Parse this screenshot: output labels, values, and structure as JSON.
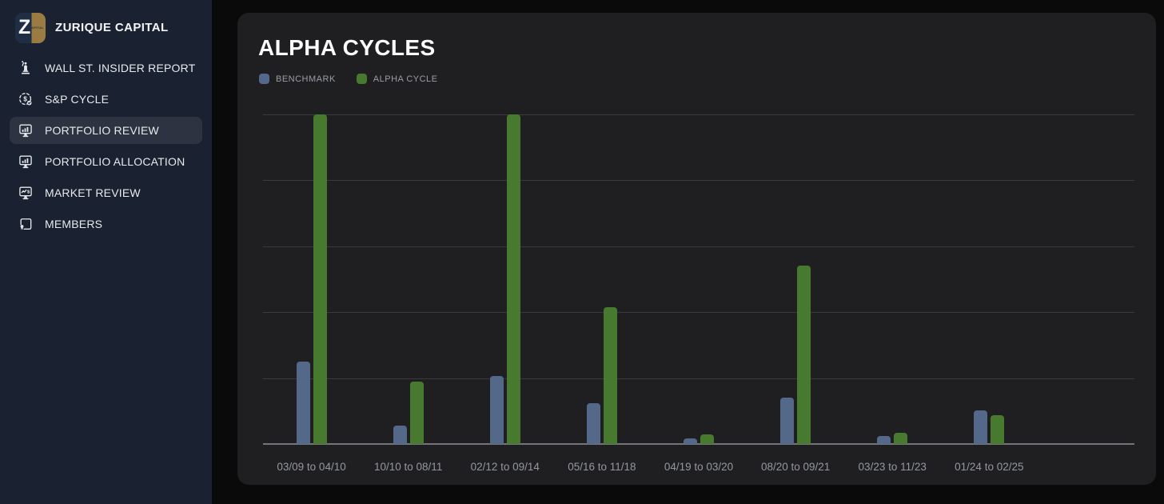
{
  "colors": {
    "page_bg": "#0a0a0b",
    "sidebar_bg": "#1a2130",
    "selected_item_bg": "#2d3340",
    "card_bg": "#1f1f21",
    "benchmark": "#54688a",
    "alpha_cycle": "#477a2f",
    "gridline": "#3a3a3e",
    "axis_line": "#737579",
    "logo_navy": "#202e45",
    "logo_gold": "#9a7c42"
  },
  "sidebar": {
    "brand": {
      "title": "ZURIQUE CAPITAL",
      "logo_letter": "Z",
      "logo_sub": "CAPITAL"
    },
    "items": [
      {
        "label": "WALL ST. INSIDER REPORT",
        "icon": "statue-icon",
        "selected": false
      },
      {
        "label": "S&P CYCLE",
        "icon": "dollar-cycle-icon",
        "selected": false
      },
      {
        "label": "PORTFOLIO REVIEW",
        "icon": "monitor-bars-icon",
        "selected": true
      },
      {
        "label": "PORTFOLIO ALLOCATION",
        "icon": "monitor-bars-icon",
        "selected": false
      },
      {
        "label": "MARKET REVIEW",
        "icon": "monitor-market-icon",
        "selected": false
      },
      {
        "label": "MEMBERS",
        "icon": "certificate-icon",
        "selected": false
      }
    ]
  },
  "main": {
    "title": "ALPHA CYCLES",
    "legend": [
      {
        "label": "BENCHMARK",
        "color": "#54688a"
      },
      {
        "label": "ALPHA CYCLE",
        "color": "#477a2f"
      }
    ]
  },
  "chart_data": {
    "type": "bar",
    "title": "ALPHA CYCLES",
    "categories": [
      "03/09 to 04/10",
      "10/10 to 08/11",
      "02/12 to 09/14",
      "05/16 to 11/18",
      "04/19 to 03/20",
      "08/20 to 09/21",
      "03/23 to 11/23",
      "01/24 to 02/25"
    ],
    "series": [
      {
        "name": "BENCHMARK",
        "color": "#54688a",
        "values": [
          125,
          28,
          103,
          62,
          9,
          70,
          12,
          51
        ]
      },
      {
        "name": "ALPHA CYCLE",
        "color": "#477a2f",
        "values": [
          500,
          95,
          500,
          207,
          15,
          271,
          17,
          44
        ]
      }
    ],
    "xlabel": "",
    "ylabel": "",
    "ylim": [
      0,
      500
    ],
    "gridline_step": 100,
    "grid": true,
    "y_axis_labels_visible": false,
    "legend_position": "top-left",
    "extra_right_padding_slots": 1
  }
}
